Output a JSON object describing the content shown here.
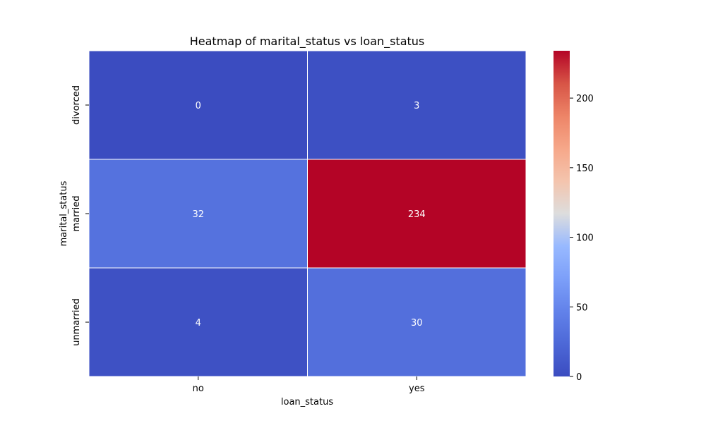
{
  "chart_data": {
    "type": "heatmap",
    "title": "Heatmap of marital_status vs loan_status",
    "xlabel": "loan_status",
    "ylabel": "marital_status",
    "x_categories": [
      "no",
      "yes"
    ],
    "y_categories": [
      "divorced",
      "married",
      "unmarried"
    ],
    "values": [
      [
        0,
        3
      ],
      [
        32,
        234
      ],
      [
        4,
        30
      ]
    ],
    "colormap": "coolwarm",
    "color_range": [
      0,
      234
    ],
    "colorbar_ticks": [
      0,
      50,
      100,
      150,
      200
    ],
    "cell_line_color": "#ffffff",
    "annot_color_light": "#ffffff",
    "annot_color_dark": "#000000"
  }
}
